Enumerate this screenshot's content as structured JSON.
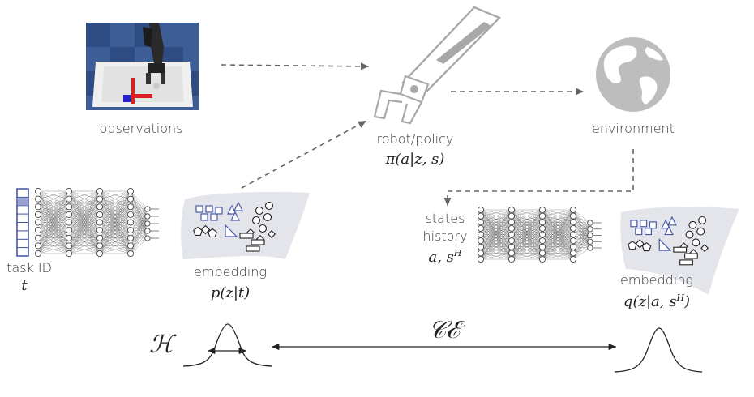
{
  "labels": {
    "observations": "observations",
    "robot_policy": "robot/policy",
    "policy_formula": "π(a|z, s)",
    "environment": "environment",
    "states_line1": "states",
    "states_line2": "history",
    "states_formula": "a, s",
    "states_formula_sup": "H",
    "task_id": "task ID",
    "task_var": "t",
    "embedding_left": "embedding",
    "embedding_left_formula": "p(z|t)",
    "embedding_right": "embedding",
    "embedding_right_formula_a": "q(z|a, s",
    "embedding_right_formula_sup": "H",
    "embedding_right_formula_b": ")",
    "entropy_symbol": "ℋ",
    "cross_entropy_symbol": "𝒞ℰ"
  },
  "colors": {
    "arrow": "#666666",
    "icon_gray": "#b0b0b0",
    "shape_blue": "#4a5aa8",
    "blob": "#e4e6ea",
    "network": "#555555"
  },
  "icons": {
    "robot": "robot-gripper-icon",
    "environment": "globe-icon"
  }
}
